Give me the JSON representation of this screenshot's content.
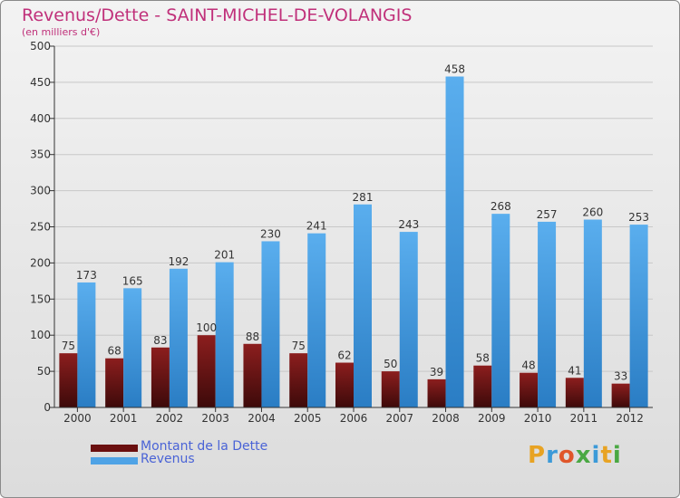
{
  "title": "Revenus/Dette - SAINT-MICHEL-DE-VOLANGIS",
  "subtitle": "(en milliers d'€)",
  "chart_data": {
    "type": "bar",
    "categories": [
      "2000",
      "2001",
      "2002",
      "2003",
      "2004",
      "2005",
      "2006",
      "2007",
      "2008",
      "2009",
      "2010",
      "2011",
      "2012"
    ],
    "series": [
      {
        "name": "Montant de la Dette",
        "color": "#7a1818",
        "values": [
          75,
          68,
          83,
          100,
          88,
          75,
          62,
          50,
          39,
          58,
          48,
          41,
          33
        ]
      },
      {
        "name": "Revenus",
        "color": "#4fa3e6",
        "values": [
          173,
          165,
          192,
          201,
          230,
          241,
          281,
          243,
          458,
          268,
          257,
          260,
          253
        ]
      }
    ],
    "ylim": [
      0,
      500
    ],
    "yticks": [
      0,
      50,
      100,
      150,
      200,
      250,
      300,
      350,
      400,
      450,
      500
    ],
    "grid": true,
    "legend": "bottom-left"
  },
  "legend": {
    "debt_label": "Montant de la Dette",
    "revenue_label": "Revenus"
  },
  "logo": {
    "letters": [
      "P",
      "r",
      "o",
      "x",
      "i",
      "t",
      "i"
    ],
    "colors": [
      "#e8a323",
      "#3c9ad8",
      "#e0562a",
      "#4aa843",
      "#3c9ad8",
      "#e8a323",
      "#4aa843"
    ]
  }
}
